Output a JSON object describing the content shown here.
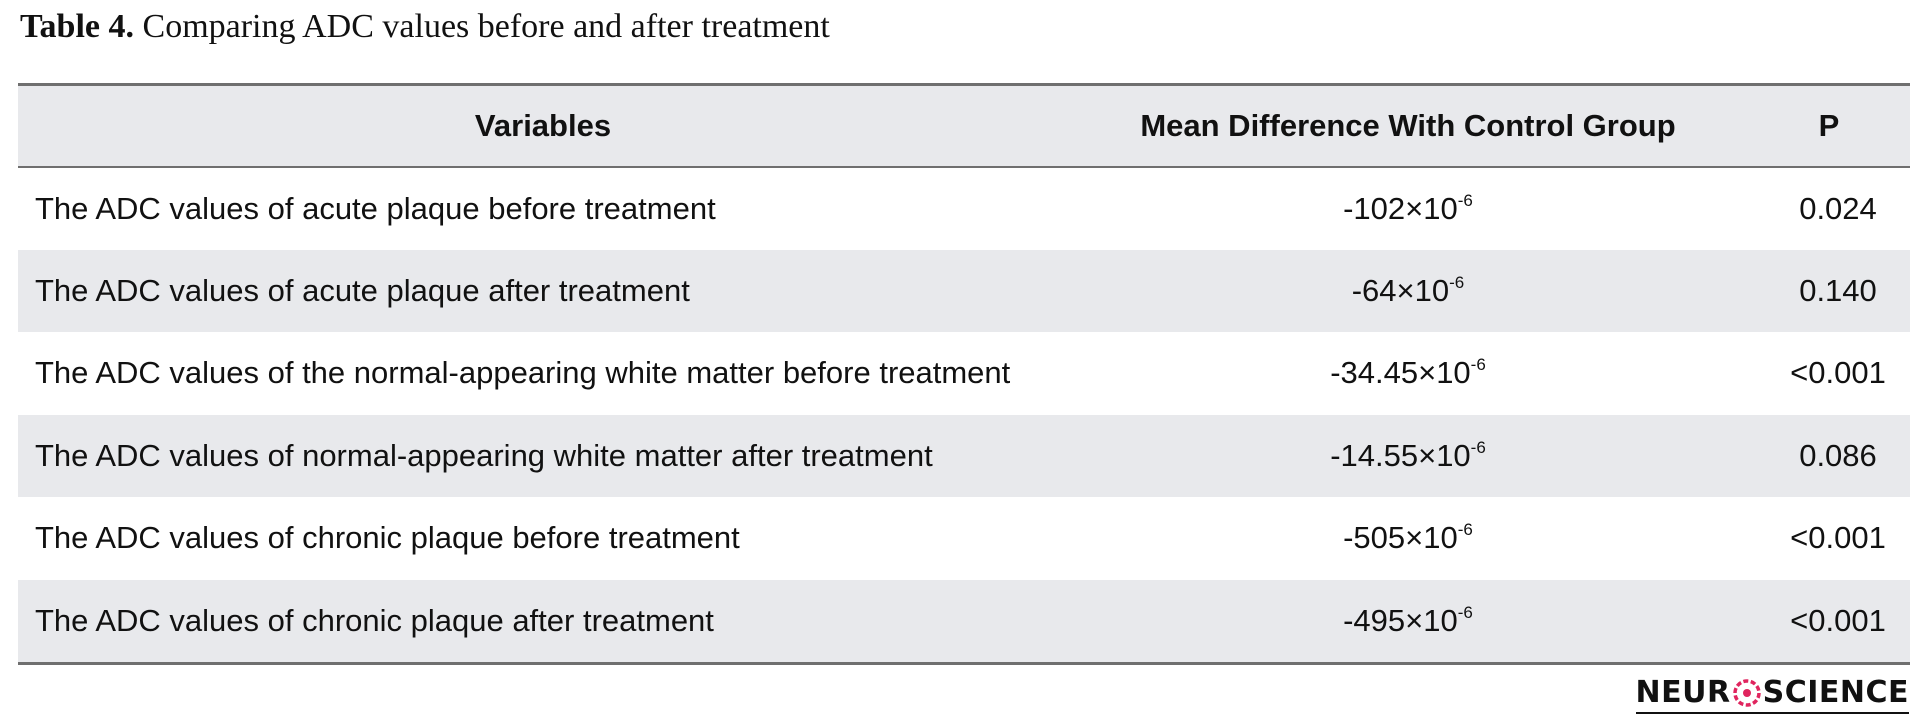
{
  "caption": {
    "label": "Table 4.",
    "text": " Comparing ADC values before and after treatment"
  },
  "table": {
    "headers": [
      "Variables",
      "Mean Difference With Control Group",
      "P"
    ],
    "rows": [
      {
        "variable": "The ADC values of acute plaque before treatment",
        "mean_base": "-102×10",
        "mean_exp": "-6",
        "p": "0.024"
      },
      {
        "variable": "The ADC values of acute plaque after treatment",
        "mean_base": "-64×10",
        "mean_exp": "-6",
        "p": "0.140"
      },
      {
        "variable": "The ADC values of the normal-appearing white matter before treatment",
        "mean_base": "-34.45×10",
        "mean_exp": "-6",
        "p": "<0.001"
      },
      {
        "variable": "The ADC values of normal-appearing white matter after treatment",
        "mean_base": "-14.55×10",
        "mean_exp": "-6",
        "p": "0.086"
      },
      {
        "variable": "The ADC values of chronic plaque before treatment",
        "mean_base": "-505×10",
        "mean_exp": "-6",
        "p": "<0.001"
      },
      {
        "variable": "The ADC values of chronic plaque after treatment",
        "mean_base": "-495×10",
        "mean_exp": "-6",
        "p": "<0.001"
      }
    ]
  },
  "logo": {
    "left": "NEUR",
    "right": "SCIENCE",
    "icon": "brain-o-icon",
    "accent": "#e0245e"
  }
}
